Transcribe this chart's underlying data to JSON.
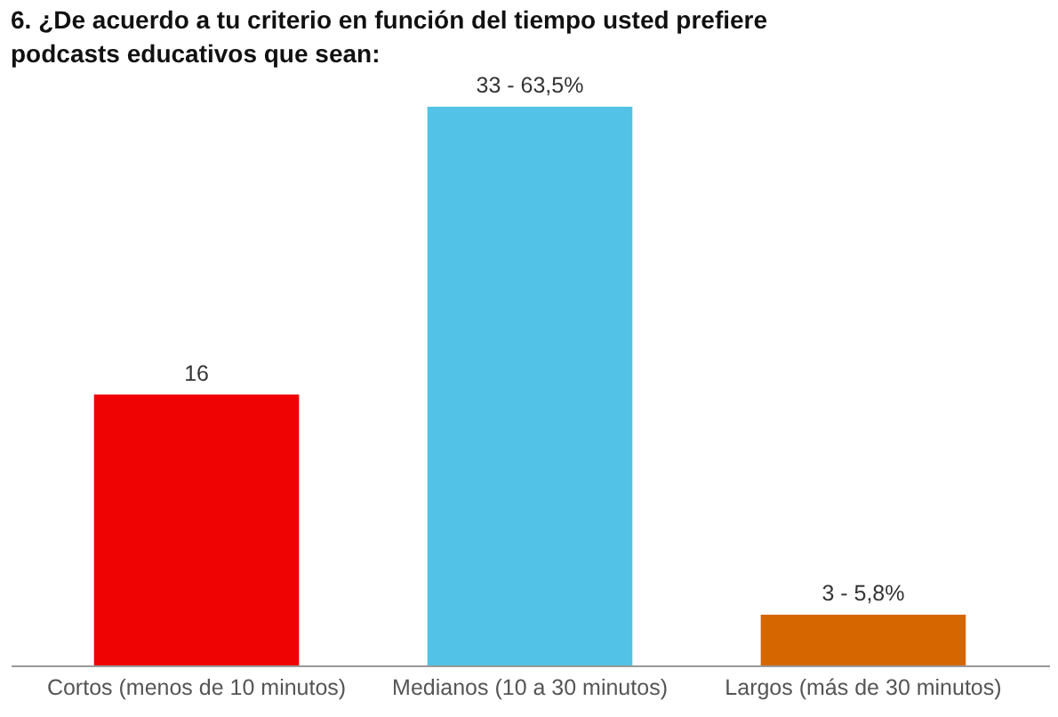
{
  "chart_data": {
    "type": "bar",
    "title": "6. ¿De acuerdo a tu criterio en función del tiempo usted prefiere podcasts educativos que sean:",
    "categories": [
      "Cortos (menos de 10 minutos)",
      "Medianos (10 a 30 minutos)",
      "Largos (más de 30 minutos)"
    ],
    "values": [
      16,
      33,
      3
    ],
    "colors": [
      "#ef0303",
      "#52c3e6",
      "#d66700"
    ],
    "value_labels": [
      "16",
      "33 - 63,5%",
      "3 - 5,8%"
    ],
    "ylim": [
      0,
      33
    ],
    "tick_labels": "x"
  }
}
